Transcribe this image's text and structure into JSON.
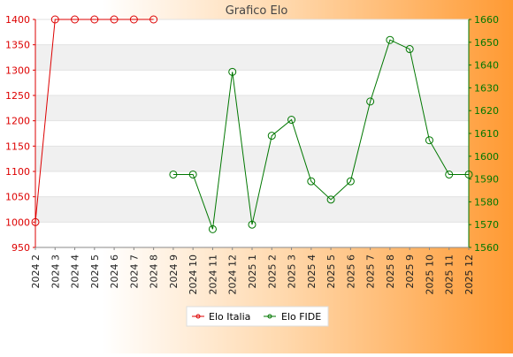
{
  "chart_data": {
    "type": "line",
    "title": "Grafico Elo",
    "x": [
      "2024 2",
      "2024 3",
      "2024 4",
      "2024 5",
      "2024 6",
      "2024 7",
      "2024 8",
      "2024 9",
      "2024 10",
      "2024 11",
      "2024 12",
      "2025 1",
      "2025 2",
      "2025 3",
      "2025 4",
      "2025 5",
      "2025 6",
      "2025 7",
      "2025 8",
      "2025 9",
      "2025 10",
      "2025 11",
      "2025 12"
    ],
    "series": [
      {
        "name": "Elo Italia",
        "axis": "left",
        "color": "#dd0000",
        "values": [
          1000,
          1400,
          1400,
          1400,
          1400,
          1400,
          1400,
          null,
          null,
          null,
          null,
          null,
          null,
          null,
          null,
          null,
          null,
          null,
          null,
          null,
          null,
          null,
          null
        ]
      },
      {
        "name": "Elo FIDE",
        "axis": "right",
        "color": "#007700",
        "values": [
          null,
          null,
          null,
          null,
          null,
          null,
          null,
          1592,
          1592,
          1568,
          1637,
          1570,
          1609,
          1616,
          1589,
          1581,
          1589,
          1624,
          1651,
          1647,
          1607,
          1592,
          1592
        ]
      }
    ],
    "y_left": {
      "ylim": [
        950,
        1400
      ],
      "ticks": [
        950,
        1000,
        1050,
        1100,
        1150,
        1200,
        1250,
        1300,
        1350,
        1400
      ],
      "color": "#dd0000"
    },
    "y_right": {
      "ylim": [
        1560,
        1660
      ],
      "ticks": [
        1560,
        1570,
        1580,
        1590,
        1600,
        1610,
        1620,
        1630,
        1640,
        1650,
        1660
      ],
      "color": "#007700"
    },
    "grid": true,
    "legend_position": "bottom-center"
  }
}
